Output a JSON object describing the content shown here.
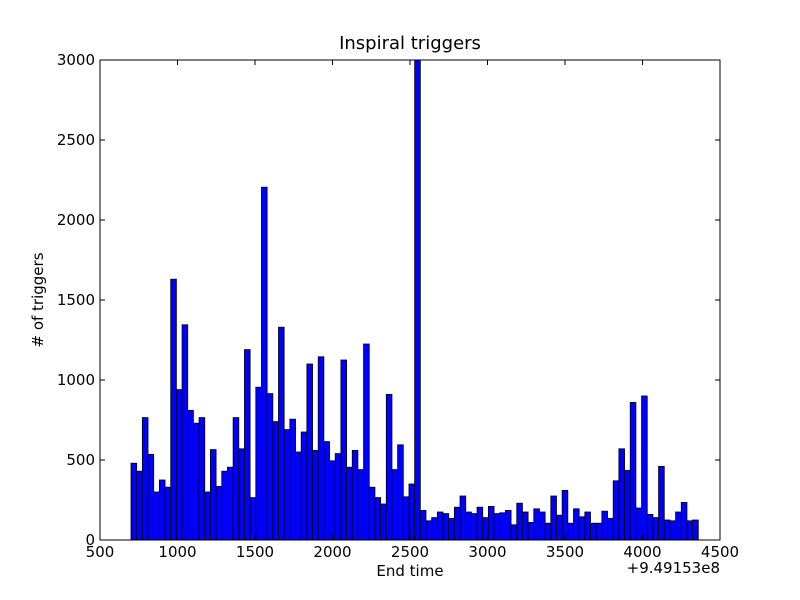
{
  "chart_data": {
    "type": "bar",
    "title": "Inspiral triggers",
    "xlabel": "End time",
    "ylabel": "# of triggers",
    "x_offset_label": "+9.49153e8",
    "xlim": [
      500,
      4500
    ],
    "ylim": [
      0,
      3000
    ],
    "xticks": [
      "500",
      "1000",
      "1500",
      "2000",
      "2500",
      "3000",
      "3500",
      "4000",
      "4500"
    ],
    "yticks": [
      "0",
      "500",
      "1000",
      "1500",
      "2000",
      "2500",
      "3000"
    ],
    "grid": false,
    "bar_color": "#0000ff",
    "bin_start": 700,
    "bin_width": 36.6,
    "values": [
      480,
      430,
      765,
      535,
      300,
      375,
      330,
      1630,
      940,
      1345,
      810,
      730,
      765,
      300,
      565,
      335,
      430,
      455,
      765,
      570,
      1190,
      265,
      955,
      2205,
      915,
      740,
      1330,
      690,
      755,
      550,
      675,
      1100,
      560,
      1145,
      615,
      495,
      540,
      1125,
      455,
      560,
      440,
      1225,
      330,
      265,
      225,
      910,
      440,
      595,
      270,
      350,
      3000,
      185,
      120,
      140,
      175,
      165,
      135,
      205,
      275,
      175,
      165,
      205,
      140,
      210,
      165,
      170,
      185,
      95,
      230,
      175,
      110,
      195,
      175,
      105,
      275,
      155,
      310,
      105,
      195,
      145,
      175,
      105,
      105,
      180,
      135,
      370,
      570,
      435,
      860,
      200,
      900,
      160,
      140,
      460,
      125,
      120,
      175,
      235,
      120,
      125
    ]
  }
}
